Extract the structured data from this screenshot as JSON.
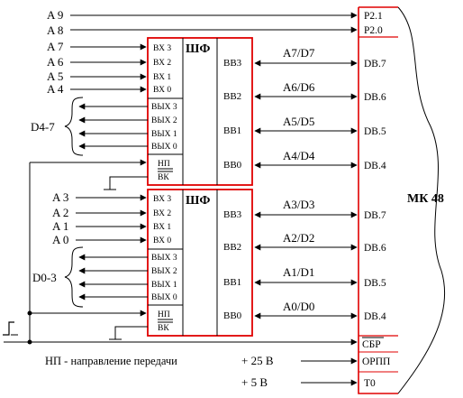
{
  "mcu": {
    "name": "МК 48",
    "top_pins": [
      "P2.1",
      "P2.0"
    ],
    "data_pins_upper": [
      "DB.7",
      "DB.6",
      "DB.5",
      "DB.4"
    ],
    "data_pins_lower": [
      "DB.7",
      "DB.6",
      "DB.5",
      "DB.4"
    ],
    "bottom_pins": [
      "СБР",
      "ОРПП",
      "T0"
    ]
  },
  "top_inputs": [
    "A 9",
    "A 8"
  ],
  "chip_upper": {
    "title": "ШФ",
    "inputs": [
      "A 7",
      "A 6",
      "A 5",
      "A 4"
    ],
    "in_pins": [
      "ВХ 3",
      "ВХ 2",
      "ВХ 1",
      "ВХ 0"
    ],
    "out_pins": [
      "ВЫХ 3",
      "ВЫХ 2",
      "ВЫХ 1",
      "ВЫХ 0"
    ],
    "out_group": "D4-7",
    "ctrl_pins": [
      "НП",
      "ВК"
    ],
    "bb_pins": [
      "ВВ3",
      "ВВ2",
      "ВВ1",
      "ВВ0"
    ],
    "bus_labels": [
      "A7/D7",
      "A6/D6",
      "A5/D5",
      "A4/D4"
    ]
  },
  "chip_lower": {
    "title": "ШФ",
    "inputs": [
      "A 3",
      "A 2",
      "A 1",
      "A 0"
    ],
    "in_pins": [
      "ВХ 3",
      "ВХ 2",
      "ВХ 1",
      "ВХ 0"
    ],
    "out_pins": [
      "ВЫХ 3",
      "ВЫХ 2",
      "ВЫХ 1",
      "ВЫХ 0"
    ],
    "out_group": "D0-3",
    "ctrl_pins": [
      "НП",
      "ВК"
    ],
    "bb_pins": [
      "ВВ3",
      "ВВ2",
      "ВВ1",
      "ВВ0"
    ],
    "bus_labels": [
      "A3/D3",
      "A2/D2",
      "A1/D1",
      "A0/D0"
    ]
  },
  "note": "НП - направление передачи",
  "supply": [
    "+ 25 В",
    "+ 5 В"
  ]
}
